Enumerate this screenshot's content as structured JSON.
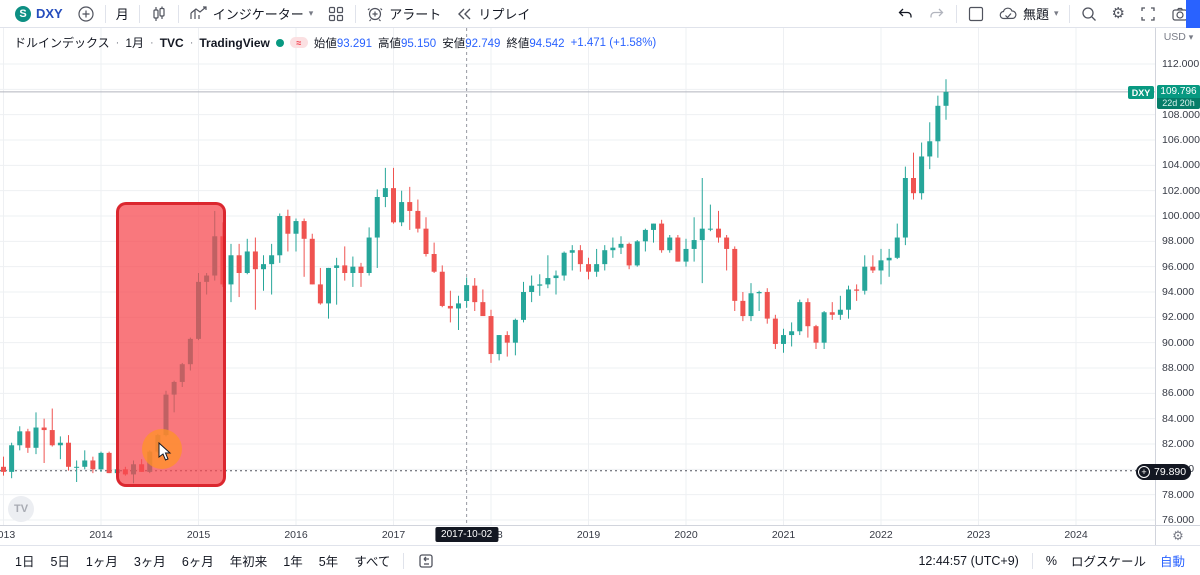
{
  "toolbar": {
    "symbol": "DXY",
    "symbol_logo_letter": "S",
    "interval": "月",
    "indicators": "インジケーター",
    "alert": "アラート",
    "replay": "リプレイ",
    "layout_name": "無題"
  },
  "legend": {
    "title": "ドルインデックス",
    "interval": "1月",
    "exchange": "TVC",
    "source": "TradingView",
    "separator": "·",
    "values": [
      {
        "label": "始値",
        "value": "93.291"
      },
      {
        "label": "高値",
        "value": "95.150"
      },
      {
        "label": "安値",
        "value": "92.749"
      },
      {
        "label": "終値",
        "value": "94.542"
      }
    ],
    "change": "+1.471 (+1.58%)"
  },
  "price_axis": {
    "currency": "USD",
    "caret": "▾"
  },
  "price_badge": {
    "symbol": "DXY",
    "price": "109.796",
    "countdown": "22d 20h"
  },
  "level_badge": {
    "plus": "+",
    "price": "79.890"
  },
  "time_axis": {
    "crosshair_label": "2017-10-02"
  },
  "bottom_bar": {
    "ranges": [
      "1日",
      "5日",
      "1ヶ月",
      "3ヶ月",
      "6ヶ月",
      "年初来",
      "1年",
      "5年",
      "すべて"
    ],
    "clock": "12:44:57 (UTC+9)",
    "percent": "%",
    "log_scale": "ログスケール",
    "auto": "自動"
  },
  "colors": {
    "up": "#26a69a",
    "down": "#ef5350",
    "accent": "#2962ff",
    "badge_teal": "#089981",
    "highlight_red": "#f23645",
    "grid": "#eef0f3"
  },
  "chart_data": {
    "type": "candlestick",
    "symbol": "DXY",
    "timeframe": "1M",
    "title": "ドルインデックス 1月 TVC",
    "start_month": "2013-01",
    "y_axis": {
      "min": 76,
      "max": 112,
      "step": 2,
      "decimals": 3
    },
    "x_axis_years": [
      2013,
      2014,
      2015,
      2016,
      2017,
      2018,
      2019,
      2020,
      2021,
      2022,
      2023,
      2024
    ],
    "current_price": 109.796,
    "marked_level": 79.89,
    "crosshair_date": "2017-10-02",
    "candles": [
      [
        80.2,
        81.0,
        79.5,
        79.8
      ],
      [
        79.8,
        82.1,
        79.3,
        81.9
      ],
      [
        81.9,
        83.4,
        81.5,
        83.0
      ],
      [
        83.0,
        83.2,
        81.3,
        81.7
      ],
      [
        81.7,
        84.5,
        81.2,
        83.3
      ],
      [
        83.3,
        84.0,
        80.5,
        83.1
      ],
      [
        83.1,
        84.8,
        81.8,
        81.9
      ],
      [
        81.9,
        82.6,
        80.8,
        82.1
      ],
      [
        82.1,
        82.7,
        79.9,
        80.2
      ],
      [
        80.2,
        80.7,
        79.0,
        80.2
      ],
      [
        80.2,
        81.5,
        80.0,
        80.7
      ],
      [
        80.7,
        81.0,
        79.7,
        80.0
      ],
      [
        80.0,
        81.4,
        79.8,
        81.3
      ],
      [
        81.3,
        81.4,
        79.7,
        79.7
      ],
      [
        79.7,
        80.4,
        79.3,
        80.0
      ],
      [
        80.0,
        80.2,
        79.5,
        79.6
      ],
      [
        79.6,
        80.7,
        78.9,
        80.4
      ],
      [
        80.4,
        80.8,
        79.8,
        79.8
      ],
      [
        79.8,
        81.5,
        79.7,
        81.4
      ],
      [
        81.4,
        82.8,
        81.3,
        82.7
      ],
      [
        82.7,
        86.2,
        82.6,
        85.9
      ],
      [
        85.9,
        87.0,
        84.5,
        86.9
      ],
      [
        86.9,
        88.4,
        86.5,
        88.3
      ],
      [
        88.3,
        90.4,
        87.8,
        90.3
      ],
      [
        90.3,
        95.5,
        90.2,
        94.8
      ],
      [
        94.8,
        95.5,
        93.8,
        95.3
      ],
      [
        95.3,
        100.4,
        94.9,
        98.4
      ],
      [
        98.4,
        99.5,
        94.4,
        94.6
      ],
      [
        94.6,
        97.8,
        93.2,
        96.9
      ],
      [
        96.9,
        97.8,
        93.6,
        95.5
      ],
      [
        95.5,
        98.2,
        95.4,
        97.2
      ],
      [
        97.2,
        98.3,
        92.6,
        95.8
      ],
      [
        95.8,
        96.9,
        94.1,
        96.2
      ],
      [
        96.2,
        97.8,
        93.8,
        96.9
      ],
      [
        96.9,
        100.2,
        96.3,
        100.0
      ],
      [
        100.0,
        100.5,
        97.2,
        98.6
      ],
      [
        98.6,
        99.8,
        97.2,
        99.6
      ],
      [
        99.6,
        99.8,
        95.2,
        98.2
      ],
      [
        98.2,
        98.6,
        94.6,
        94.6
      ],
      [
        94.6,
        95.9,
        93.0,
        93.1
      ],
      [
        93.1,
        95.9,
        91.9,
        95.9
      ],
      [
        95.9,
        96.7,
        93.0,
        96.1
      ],
      [
        96.1,
        97.6,
        94.9,
        95.5
      ],
      [
        95.5,
        96.8,
        94.4,
        96.0
      ],
      [
        96.0,
        96.3,
        94.4,
        95.5
      ],
      [
        95.5,
        99.1,
        95.3,
        98.3
      ],
      [
        98.3,
        102.1,
        95.9,
        101.5
      ],
      [
        101.5,
        103.8,
        100.7,
        102.2
      ],
      [
        102.2,
        103.8,
        99.4,
        99.5
      ],
      [
        99.5,
        102.0,
        99.2,
        101.1
      ],
      [
        101.1,
        102.3,
        98.9,
        100.4
      ],
      [
        100.4,
        101.3,
        98.7,
        99.0
      ],
      [
        99.0,
        99.9,
        96.8,
        97.0
      ],
      [
        97.0,
        97.9,
        95.5,
        95.6
      ],
      [
        95.6,
        96.1,
        92.8,
        92.9
      ],
      [
        92.9,
        94.1,
        91.6,
        92.7
      ],
      [
        92.7,
        93.7,
        91.0,
        93.1
      ],
      [
        93.291,
        95.15,
        92.749,
        94.542
      ],
      [
        94.5,
        95.1,
        92.5,
        93.2
      ],
      [
        93.2,
        94.2,
        92.2,
        92.1
      ],
      [
        92.1,
        92.6,
        88.4,
        89.1
      ],
      [
        89.1,
        90.6,
        88.6,
        90.6
      ],
      [
        90.6,
        90.9,
        88.9,
        90.0
      ],
      [
        90.0,
        91.9,
        89.0,
        91.8
      ],
      [
        91.8,
        94.8,
        91.6,
        94.0
      ],
      [
        94.0,
        95.3,
        93.2,
        94.5
      ],
      [
        94.5,
        95.4,
        93.7,
        94.6
      ],
      [
        94.6,
        96.9,
        94.3,
        95.1
      ],
      [
        95.1,
        95.7,
        93.8,
        95.3
      ],
      [
        95.3,
        97.2,
        94.9,
        97.1
      ],
      [
        97.1,
        97.7,
        95.7,
        97.3
      ],
      [
        97.3,
        97.7,
        95.6,
        96.2
      ],
      [
        96.2,
        96.7,
        95.0,
        95.6
      ],
      [
        95.6,
        97.4,
        95.2,
        96.2
      ],
      [
        96.2,
        97.7,
        95.7,
        97.3
      ],
      [
        97.3,
        98.3,
        96.7,
        97.5
      ],
      [
        97.5,
        98.4,
        97.0,
        97.8
      ],
      [
        97.8,
        97.9,
        95.8,
        96.1
      ],
      [
        96.1,
        98.1,
        96.0,
        98.0
      ],
      [
        98.0,
        99.0,
        97.2,
        98.9
      ],
      [
        98.9,
        99.4,
        97.9,
        99.4
      ],
      [
        99.4,
        99.7,
        97.1,
        97.3
      ],
      [
        97.3,
        98.5,
        97.1,
        98.3
      ],
      [
        98.3,
        98.5,
        96.4,
        96.4
      ],
      [
        96.4,
        98.2,
        96.0,
        97.4
      ],
      [
        97.4,
        99.9,
        96.4,
        98.1
      ],
      [
        98.1,
        103.0,
        94.7,
        99.0
      ],
      [
        99.0,
        100.9,
        98.8,
        99.0
      ],
      [
        99.0,
        100.4,
        97.9,
        98.3
      ],
      [
        98.3,
        98.5,
        95.7,
        97.4
      ],
      [
        97.4,
        97.6,
        92.5,
        93.3
      ],
      [
        93.3,
        94.0,
        91.7,
        92.1
      ],
      [
        92.1,
        94.7,
        91.7,
        93.9
      ],
      [
        93.9,
        94.1,
        92.5,
        94.0
      ],
      [
        94.0,
        94.3,
        91.5,
        91.9
      ],
      [
        91.9,
        92.2,
        89.5,
        89.9
      ],
      [
        89.9,
        91.1,
        89.2,
        90.6
      ],
      [
        90.6,
        91.6,
        89.7,
        90.9
      ],
      [
        90.9,
        93.4,
        90.6,
        93.2
      ],
      [
        93.2,
        93.5,
        90.4,
        91.3
      ],
      [
        91.3,
        91.4,
        89.5,
        90.0
      ],
      [
        90.0,
        92.5,
        89.5,
        92.4
      ],
      [
        92.4,
        93.2,
        91.8,
        92.2
      ],
      [
        92.2,
        93.7,
        91.8,
        92.6
      ],
      [
        92.6,
        94.5,
        91.9,
        94.2
      ],
      [
        94.2,
        94.6,
        93.3,
        94.1
      ],
      [
        94.1,
        96.9,
        93.8,
        96.0
      ],
      [
        96.0,
        96.9,
        95.5,
        95.7
      ],
      [
        95.7,
        97.4,
        94.6,
        96.5
      ],
      [
        96.5,
        97.4,
        95.2,
        96.7
      ],
      [
        96.7,
        99.4,
        96.6,
        98.3
      ],
      [
        98.3,
        103.9,
        97.7,
        103.0
      ],
      [
        103.0,
        105.0,
        101.3,
        101.8
      ],
      [
        101.8,
        105.8,
        101.3,
        104.7
      ],
      [
        104.7,
        107.4,
        103.7,
        105.9
      ],
      [
        105.9,
        109.5,
        104.6,
        108.7
      ],
      [
        108.7,
        110.8,
        107.6,
        109.8
      ]
    ]
  }
}
